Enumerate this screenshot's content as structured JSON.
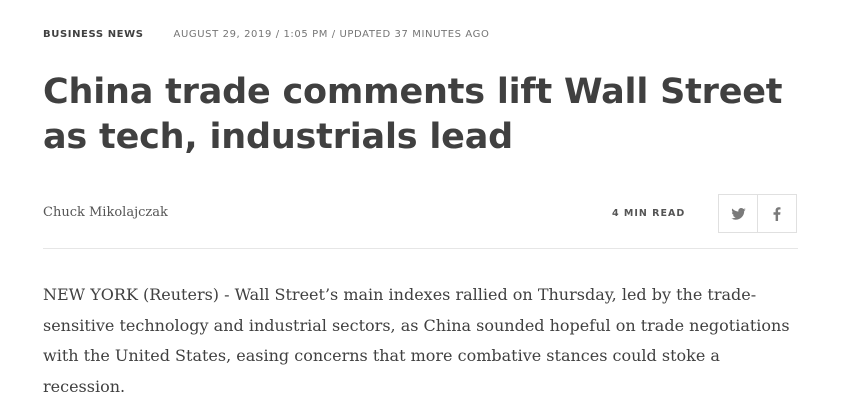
{
  "article": {
    "channel": "BUSINESS NEWS",
    "dateline": "AUGUST 29, 2019 / 1:05 PM / UPDATED 37 MINUTES AGO",
    "headline": "China trade comments lift Wall Street as tech, industrials lead",
    "author": "Chuck Mikolajczak",
    "read_time": "4 MIN READ",
    "lead_paragraph": "NEW YORK (Reuters) - Wall Street’s main indexes rallied on Thursday, led by the trade-sensitive technology and industrial sectors, as China sounded hopeful on trade negotiations with the United States, easing concerns that more combative stances could stoke a recession."
  },
  "share": {
    "buttons": [
      {
        "icon": "twitter-icon"
      },
      {
        "icon": "facebook-icon"
      }
    ]
  },
  "colors": {
    "text": "#404040",
    "muted": "#757575",
    "border": "#e0e0e0"
  }
}
